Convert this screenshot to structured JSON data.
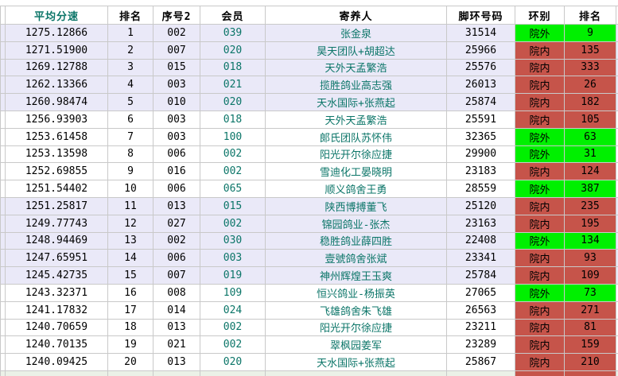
{
  "app_type": "spreadsheet-table",
  "colors": {
    "teal_text": "#0B7568",
    "band_lavender": "#EAE9F8",
    "band_white": "#FFFFFF",
    "cell_green": "#00F000",
    "cell_red": "#C6544A",
    "gridline": "#C9C9C9",
    "partial_row_bg": "#EBF1E7"
  },
  "columns": {
    "headers": [
      "平均分速",
      "排名",
      "序号2",
      "会员",
      "寄养人",
      "脚环号码",
      "环别",
      "排名"
    ],
    "accent_header_index": 0
  },
  "rows": [
    {
      "speed": "1275.12866",
      "rank": "1",
      "serial2": "002",
      "member": "039",
      "foster": "张金泉",
      "ring_no": "31514",
      "ring_type": "院外",
      "rank2": "9",
      "type": "green"
    },
    {
      "speed": "1271.51900",
      "rank": "2",
      "serial2": "007",
      "member": "020",
      "foster": "昊天团队+胡超达",
      "ring_no": "25966",
      "ring_type": "院内",
      "rank2": "135",
      "type": "red"
    },
    {
      "speed": "1269.12788",
      "rank": "3",
      "serial2": "015",
      "member": "018",
      "foster": "天外天孟繁浩",
      "ring_no": "25576",
      "ring_type": "院内",
      "rank2": "333",
      "type": "red"
    },
    {
      "speed": "1262.13366",
      "rank": "4",
      "serial2": "003",
      "member": "021",
      "foster": "揽胜鸽业高志强",
      "ring_no": "26013",
      "ring_type": "院内",
      "rank2": "26",
      "type": "red"
    },
    {
      "speed": "1260.98474",
      "rank": "5",
      "serial2": "010",
      "member": "020",
      "foster": "天水国际+张燕起",
      "ring_no": "25874",
      "ring_type": "院内",
      "rank2": "182",
      "type": "red"
    },
    {
      "speed": "1256.93903",
      "rank": "6",
      "serial2": "003",
      "member": "018",
      "foster": "天外天孟繁浩",
      "ring_no": "25591",
      "ring_type": "院内",
      "rank2": "105",
      "type": "red"
    },
    {
      "speed": "1253.61458",
      "rank": "7",
      "serial2": "003",
      "member": "100",
      "foster": "郞氏团队苏怀伟",
      "ring_no": "32365",
      "ring_type": "院外",
      "rank2": "63",
      "type": "green"
    },
    {
      "speed": "1253.13598",
      "rank": "8",
      "serial2": "006",
      "member": "002",
      "foster": "阳光开尔徐应捷",
      "ring_no": "29900",
      "ring_type": "院外",
      "rank2": "31",
      "type": "green"
    },
    {
      "speed": "1252.69855",
      "rank": "9",
      "serial2": "016",
      "member": "002",
      "foster": "雪迪化工晏晓明",
      "ring_no": "23183",
      "ring_type": "院内",
      "rank2": "124",
      "type": "red"
    },
    {
      "speed": "1251.54402",
      "rank": "10",
      "serial2": "006",
      "member": "065",
      "foster": "顺义鸽舍王勇",
      "ring_no": "28559",
      "ring_type": "院外",
      "rank2": "387",
      "type": "green"
    },
    {
      "speed": "1251.25817",
      "rank": "11",
      "serial2": "013",
      "member": "015",
      "foster": "陕西博搏董飞",
      "ring_no": "25120",
      "ring_type": "院内",
      "rank2": "235",
      "type": "red"
    },
    {
      "speed": "1249.77743",
      "rank": "12",
      "serial2": "027",
      "member": "002",
      "foster": "锦园鸽业-张杰",
      "ring_no": "23163",
      "ring_type": "院内",
      "rank2": "195",
      "type": "red"
    },
    {
      "speed": "1248.94469",
      "rank": "13",
      "serial2": "002",
      "member": "030",
      "foster": "稳胜鸽业薛四胜",
      "ring_no": "22408",
      "ring_type": "院外",
      "rank2": "134",
      "type": "green"
    },
    {
      "speed": "1247.65951",
      "rank": "14",
      "serial2": "006",
      "member": "003",
      "foster": "壹號鸽舍张斌",
      "ring_no": "23341",
      "ring_type": "院内",
      "rank2": "93",
      "type": "red"
    },
    {
      "speed": "1245.42735",
      "rank": "15",
      "serial2": "007",
      "member": "019",
      "foster": "神州辉煌王玉爽",
      "ring_no": "25784",
      "ring_type": "院内",
      "rank2": "109",
      "type": "red"
    },
    {
      "speed": "1243.32371",
      "rank": "16",
      "serial2": "008",
      "member": "109",
      "foster": "恒兴鸽业-杨振英",
      "ring_no": "27065",
      "ring_type": "院外",
      "rank2": "73",
      "type": "green"
    },
    {
      "speed": "1241.17832",
      "rank": "17",
      "serial2": "014",
      "member": "024",
      "foster": "飞雄鸽舍朱飞雄",
      "ring_no": "26563",
      "ring_type": "院内",
      "rank2": "271",
      "type": "red"
    },
    {
      "speed": "1240.70659",
      "rank": "18",
      "serial2": "013",
      "member": "002",
      "foster": "阳光开尔徐应捷",
      "ring_no": "23211",
      "ring_type": "院内",
      "rank2": "81",
      "type": "red"
    },
    {
      "speed": "1240.70135",
      "rank": "19",
      "serial2": "021",
      "member": "002",
      "foster": "翠枫园姜军",
      "ring_no": "23289",
      "ring_type": "院内",
      "rank2": "159",
      "type": "red"
    },
    {
      "speed": "1240.09425",
      "rank": "20",
      "serial2": "013",
      "member": "020",
      "foster": "天水国际+张燕起",
      "ring_no": "25867",
      "ring_type": "院内",
      "rank2": "210",
      "type": "red"
    }
  ],
  "partial_row": {
    "colored_columns": [
      "ring_type",
      "rank2"
    ],
    "colored_type": "red"
  }
}
